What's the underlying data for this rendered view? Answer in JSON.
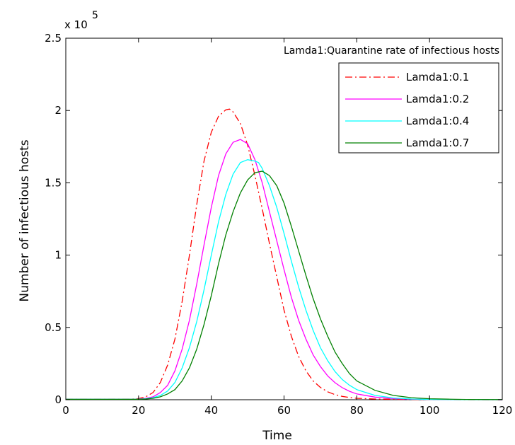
{
  "chart_data": {
    "type": "line",
    "title": "",
    "annotation": "Lamda1:Quarantine rate of infectious hosts",
    "xlabel": "Time",
    "ylabel": "Number of infectious hosts",
    "y_multiplier_base": "x 10",
    "y_multiplier_exp": "5",
    "xlim": [
      0,
      120
    ],
    "ylim": [
      0,
      2.5
    ],
    "xticks": [
      0,
      20,
      40,
      60,
      80,
      100,
      120
    ],
    "yticks": [
      0,
      0.5,
      1,
      1.5,
      2,
      2.5
    ],
    "xtick_labels": [
      "0",
      "20",
      "40",
      "60",
      "80",
      "100",
      "120"
    ],
    "ytick_labels": [
      "0",
      "0.5",
      "1",
      "1.5",
      "2",
      "2.5"
    ],
    "grid": false,
    "legend_position": "top-right",
    "series": [
      {
        "name": "Lamda1:0.1",
        "color": "#ff0000",
        "dash": "dash-dot",
        "x": [
          0,
          10,
          18,
          20,
          22,
          24,
          26,
          28,
          30,
          32,
          34,
          36,
          38,
          40,
          42,
          44,
          45,
          46,
          48,
          50,
          52,
          54,
          56,
          58,
          60,
          62,
          64,
          66,
          68,
          70,
          72,
          74,
          76,
          78,
          80,
          85,
          90,
          95,
          100,
          110,
          120
        ],
        "y": [
          0.003,
          0.003,
          0.004,
          0.008,
          0.02,
          0.05,
          0.12,
          0.24,
          0.42,
          0.68,
          1.0,
          1.35,
          1.65,
          1.85,
          1.96,
          2.005,
          2.01,
          1.99,
          1.91,
          1.76,
          1.55,
          1.32,
          1.08,
          0.85,
          0.62,
          0.44,
          0.3,
          0.2,
          0.13,
          0.085,
          0.055,
          0.035,
          0.023,
          0.015,
          0.01,
          0.005,
          0.003,
          0.002,
          0.001,
          0.0,
          0.0
        ]
      },
      {
        "name": "Lamda1:0.2",
        "color": "#ff00ff",
        "dash": "solid",
        "x": [
          0,
          10,
          18,
          20,
          22,
          24,
          26,
          28,
          30,
          32,
          34,
          36,
          38,
          40,
          42,
          44,
          46,
          48,
          50,
          52,
          54,
          56,
          58,
          60,
          62,
          64,
          66,
          68,
          70,
          72,
          74,
          76,
          78,
          80,
          85,
          90,
          95,
          100,
          110,
          120
        ],
        "y": [
          0.003,
          0.003,
          0.003,
          0.005,
          0.01,
          0.02,
          0.05,
          0.1,
          0.2,
          0.35,
          0.55,
          0.8,
          1.07,
          1.33,
          1.55,
          1.7,
          1.78,
          1.8,
          1.77,
          1.66,
          1.5,
          1.3,
          1.1,
          0.9,
          0.71,
          0.55,
          0.42,
          0.31,
          0.23,
          0.165,
          0.118,
          0.083,
          0.058,
          0.04,
          0.018,
          0.008,
          0.004,
          0.002,
          0.001,
          0.0
        ]
      },
      {
        "name": "Lamda1:0.4",
        "color": "#00ffff",
        "dash": "solid",
        "x": [
          0,
          10,
          18,
          20,
          22,
          24,
          26,
          28,
          30,
          32,
          34,
          36,
          38,
          40,
          42,
          44,
          46,
          48,
          50,
          52,
          53,
          54,
          56,
          58,
          60,
          62,
          64,
          66,
          68,
          70,
          72,
          74,
          76,
          78,
          80,
          85,
          90,
          95,
          100,
          110,
          120
        ],
        "y": [
          0.003,
          0.003,
          0.003,
          0.004,
          0.007,
          0.014,
          0.03,
          0.06,
          0.12,
          0.22,
          0.36,
          0.54,
          0.76,
          1.0,
          1.23,
          1.42,
          1.56,
          1.64,
          1.66,
          1.65,
          1.64,
          1.6,
          1.48,
          1.33,
          1.15,
          0.96,
          0.78,
          0.62,
          0.48,
          0.36,
          0.27,
          0.195,
          0.14,
          0.1,
          0.07,
          0.03,
          0.012,
          0.005,
          0.002,
          0.001,
          0.0
        ]
      },
      {
        "name": "Lamda1:0.7",
        "color": "#008000",
        "dash": "solid",
        "x": [
          0,
          10,
          18,
          20,
          22,
          24,
          26,
          28,
          30,
          32,
          34,
          36,
          38,
          40,
          42,
          44,
          46,
          48,
          50,
          52,
          54,
          56,
          58,
          60,
          62,
          64,
          66,
          68,
          70,
          72,
          74,
          76,
          78,
          80,
          85,
          90,
          95,
          100,
          105,
          110,
          120
        ],
        "y": [
          0.003,
          0.003,
          0.003,
          0.003,
          0.005,
          0.01,
          0.02,
          0.04,
          0.07,
          0.13,
          0.22,
          0.35,
          0.52,
          0.72,
          0.94,
          1.14,
          1.3,
          1.43,
          1.52,
          1.57,
          1.58,
          1.55,
          1.48,
          1.36,
          1.2,
          1.03,
          0.86,
          0.7,
          0.56,
          0.44,
          0.33,
          0.25,
          0.18,
          0.13,
          0.065,
          0.03,
          0.014,
          0.007,
          0.004,
          0.002,
          0.001
        ]
      }
    ]
  }
}
